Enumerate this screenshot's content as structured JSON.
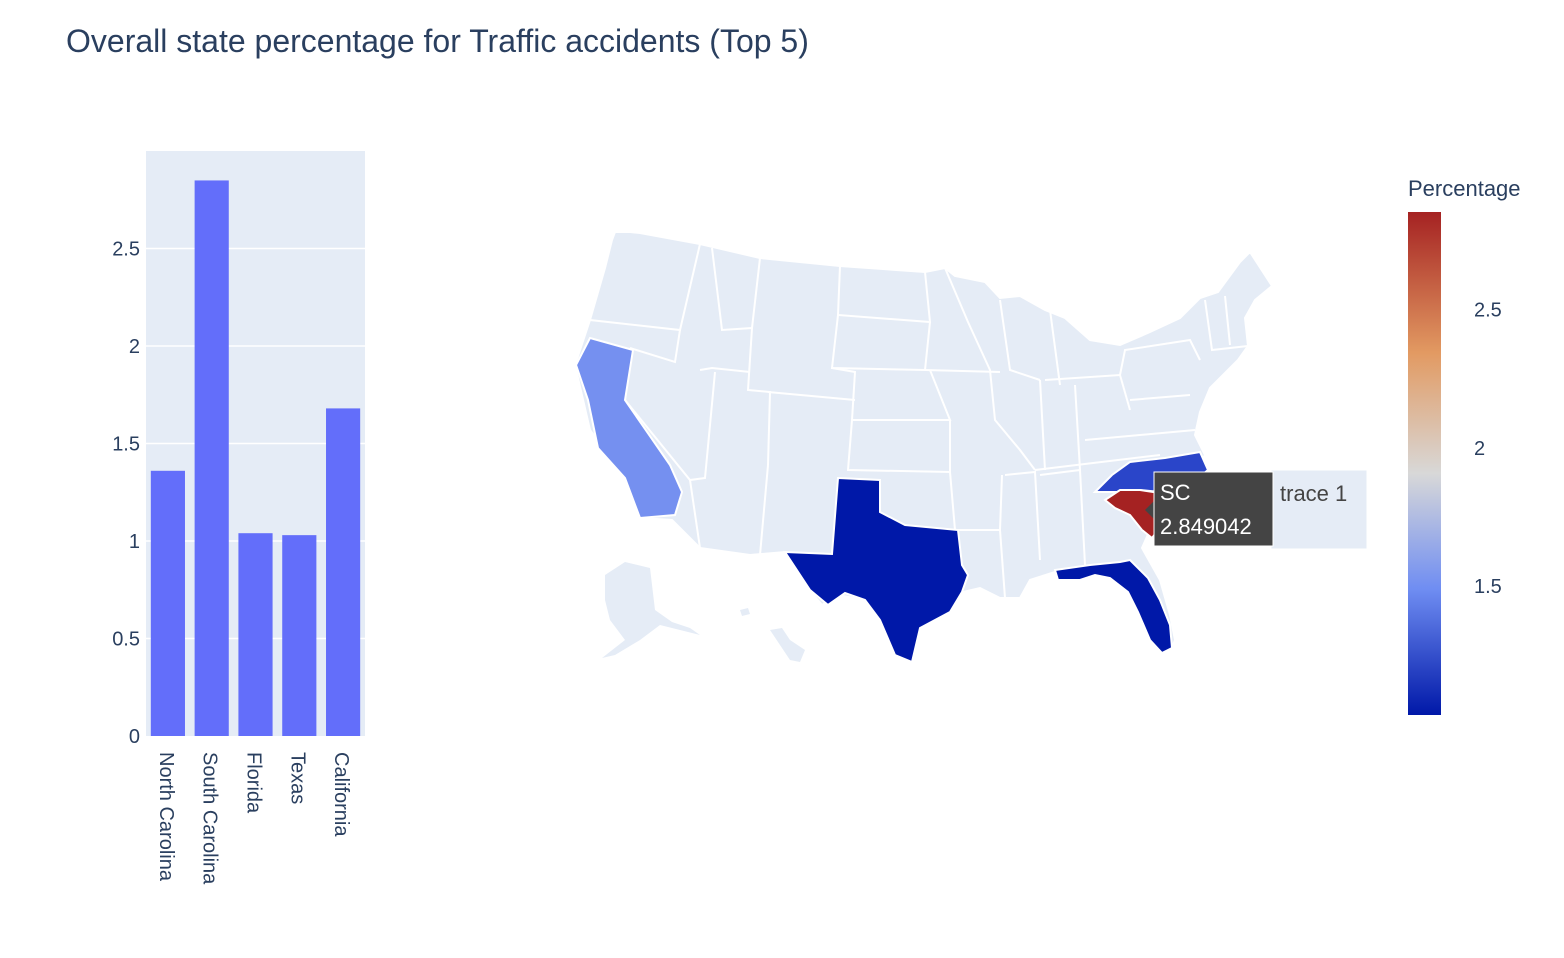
{
  "chart_data": [
    {
      "type": "bar",
      "title": "Overall state percentage for Traffic accidents (Top 5)",
      "categories": [
        "North Carolina",
        "South Carolina",
        "Florida",
        "Texas",
        "California"
      ],
      "values": [
        1.36,
        2.849042,
        1.04,
        1.03,
        1.68
      ],
      "ylim": [
        0,
        3.0
      ],
      "yticks": [
        "0",
        "0.5",
        "1",
        "1.5",
        "2",
        "2.5"
      ],
      "ytick_values": [
        0,
        0.5,
        1,
        1.5,
        2,
        2.5
      ],
      "bar_color": "#636efa",
      "plot_bg": "#e5ecf6",
      "grid": true
    },
    {
      "type": "choropleth",
      "scope": "usa",
      "locations": [
        "NC",
        "SC",
        "FL",
        "TX",
        "CA"
      ],
      "values": [
        1.36,
        2.849042,
        1.04,
        1.03,
        1.68
      ],
      "colorbar": {
        "title": "Percentage",
        "ticks": [
          "1.5",
          "2",
          "2.5"
        ],
        "tick_values": [
          1.5,
          2.0,
          2.5
        ],
        "range": [
          1.03,
          2.849042
        ],
        "colors": [
          "#0c1aa6",
          "#6a8cf5",
          "#d6d6d6",
          "#e0a070",
          "#a52222"
        ]
      },
      "hover": {
        "label": "SC",
        "value": "2.849042",
        "trace": "trace 1"
      },
      "state_fill_default": "#e5ecf6"
    }
  ]
}
